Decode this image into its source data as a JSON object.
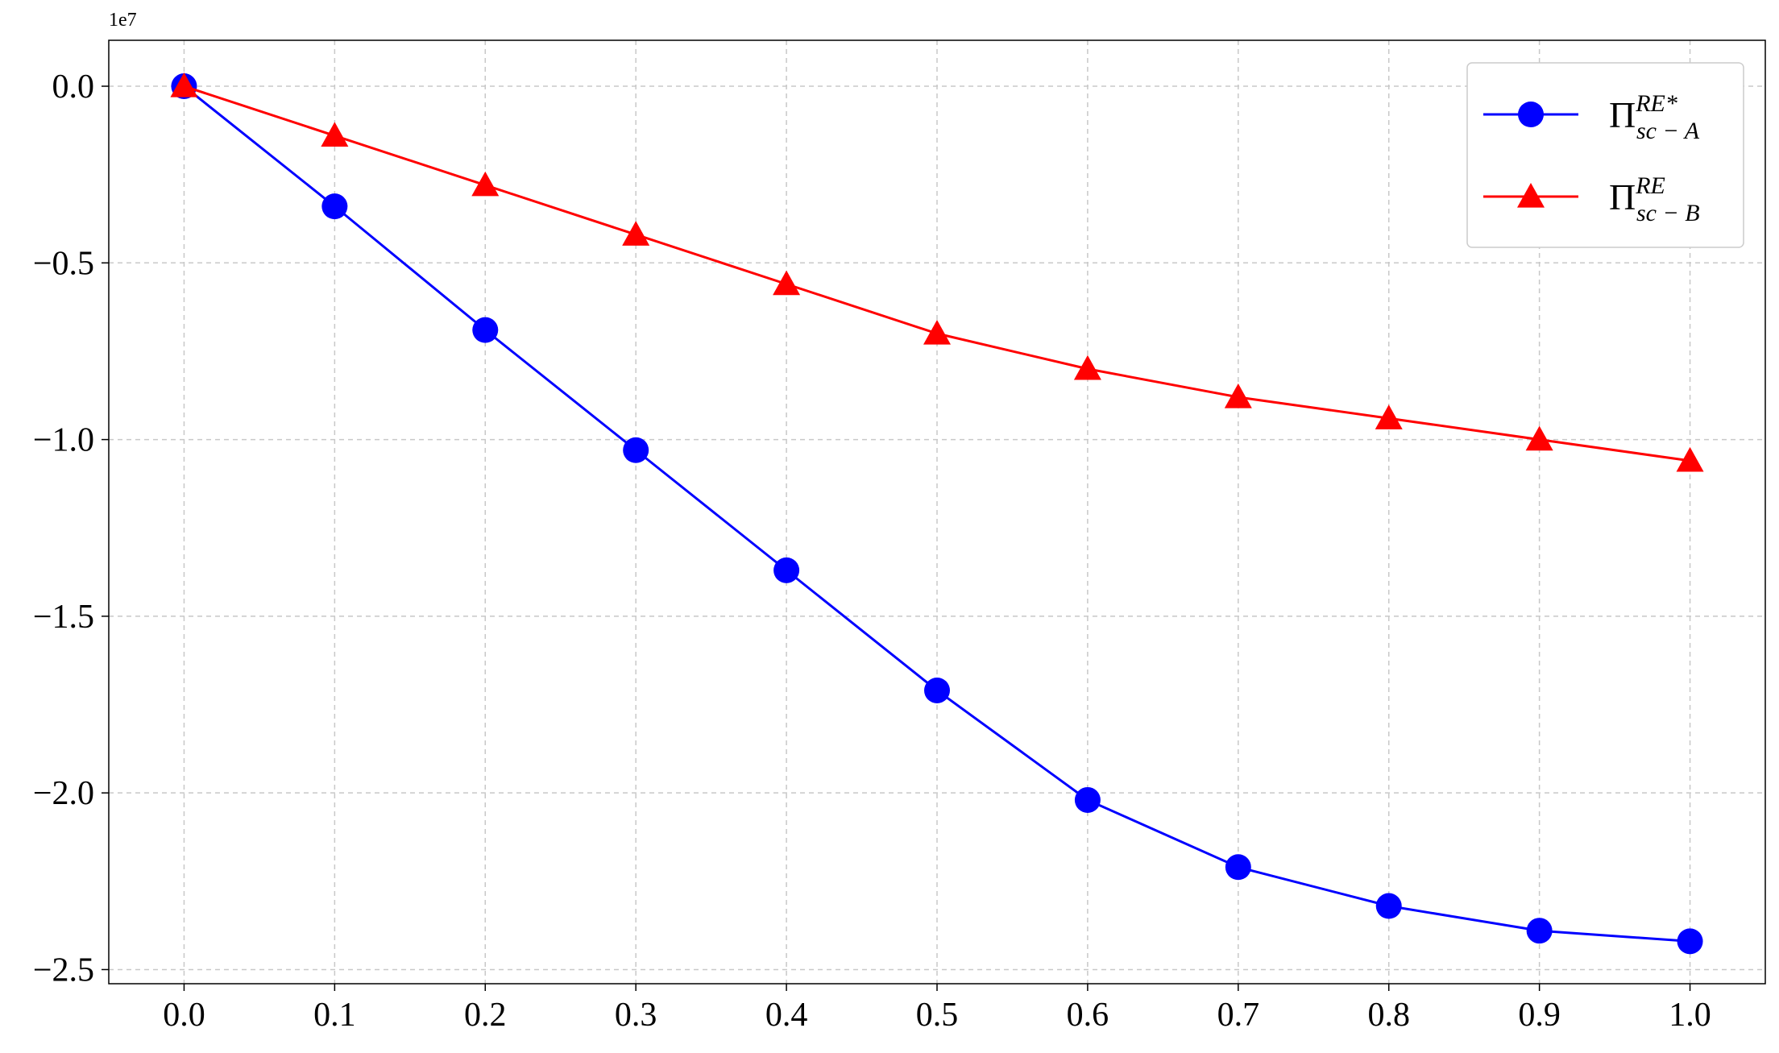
{
  "chart_data": {
    "type": "line",
    "y_offset_label": "1e7",
    "x": [
      0.0,
      0.1,
      0.2,
      0.3,
      0.4,
      0.5,
      0.6,
      0.7,
      0.8,
      0.9,
      1.0
    ],
    "series": [
      {
        "name": "Π",
        "name_superscript": "RE*",
        "name_subscript": "sc − A",
        "color": "#0000ff",
        "marker": "circle",
        "values": [
          0.0,
          -0.34,
          -0.69,
          -1.03,
          -1.37,
          -1.71,
          -2.02,
          -2.21,
          -2.32,
          -2.39,
          -2.42
        ]
      },
      {
        "name": "Π",
        "name_superscript": "RE",
        "name_subscript": "sc − B",
        "color": "#ff0000",
        "marker": "triangle",
        "values": [
          0.0,
          -0.14,
          -0.28,
          -0.42,
          -0.56,
          -0.7,
          -0.8,
          -0.88,
          -0.94,
          -1.0,
          -1.06
        ]
      }
    ],
    "xlim": [
      -0.05,
      1.05
    ],
    "xticks": [
      {
        "value": 0,
        "label": "0.0"
      },
      0.1,
      0.2,
      0.3,
      0.4,
      0.5,
      0.6,
      0.7,
      0.8,
      0.9,
      {
        "value": 1,
        "label": "1.0"
      }
    ],
    "ylim": [
      -2.54,
      0.13
    ],
    "yticks": [
      {
        "value": 0,
        "label": "0.0"
      },
      {
        "value": -0.5,
        "label": "−0.5"
      },
      {
        "value": -1,
        "label": "−1.0"
      },
      {
        "value": -1.5,
        "label": "−1.5"
      },
      {
        "value": -2,
        "label": "−2.0"
      },
      {
        "value": -2.5,
        "label": "−2.5"
      }
    ],
    "grid": true,
    "legend": "upper right"
  }
}
